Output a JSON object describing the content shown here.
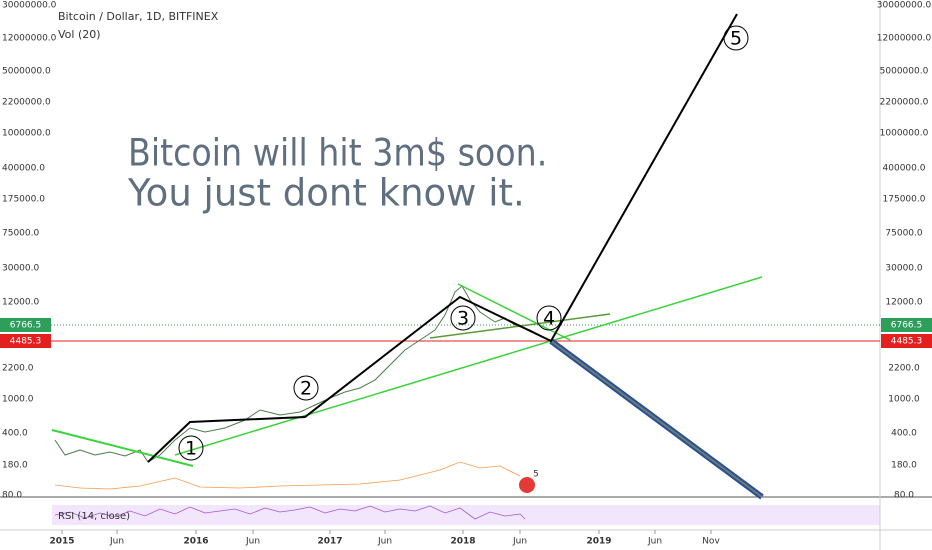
{
  "header": {
    "title": "Bitcoin / Dollar, 1D, BITFINEX",
    "indicator": "Vol (20)"
  },
  "annotation": {
    "lines": [
      "Bitcoin will hit 3m$ soon.",
      "You just dont know it."
    ]
  },
  "price_axis": {
    "ticks": [
      "30000000.0",
      "12000000.0",
      "5000000.0",
      "2200000.0",
      "1000000.0",
      "400000.0",
      "175000.0",
      "75000.0",
      "30000.0",
      "12000.0",
      "2200.0",
      "1000.0",
      "400.0",
      "180.0",
      "80.0"
    ]
  },
  "price_badges": {
    "current": "6766.5",
    "support": "4485.3"
  },
  "time_axis": {
    "labels": [
      "2015",
      "Jun",
      "2016",
      "Jun",
      "2017",
      "Jun",
      "2018",
      "Jun",
      "2019",
      "Jun",
      "Nov"
    ]
  },
  "wave_labels": [
    "1",
    "2",
    "3",
    "4",
    "5"
  ],
  "events_badge": "5",
  "rsi": {
    "label": "RSI (14, close)"
  }
}
